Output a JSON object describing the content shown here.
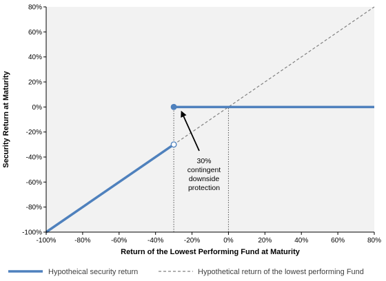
{
  "chart_data": {
    "type": "line",
    "xlabel": "Return of the Lowest Performing Fund at Maturity",
    "ylabel": "Security Return at Maturity",
    "xlim": [
      -100,
      80
    ],
    "ylim": [
      -100,
      80
    ],
    "x_ticks": [
      "-100%",
      "-80%",
      "-60%",
      "-40%",
      "-20%",
      "0%",
      "20%",
      "40%",
      "60%",
      "80%"
    ],
    "y_ticks": [
      "80%",
      "60%",
      "40%",
      "20%",
      "0%",
      "-20%",
      "-40%",
      "-60%",
      "-80%",
      "-100%"
    ],
    "grid": false,
    "plot_background": "#f2f2f2",
    "legend_position": "bottom",
    "series": [
      {
        "name": "Hypotheical security return",
        "color": "#4f81bd",
        "style": "solid",
        "segments": [
          [
            {
              "x": -100,
              "y": -100
            },
            {
              "x": -30,
              "y": -30
            }
          ],
          [
            {
              "x": -30,
              "y": 0
            },
            {
              "x": 80,
              "y": 0
            }
          ]
        ],
        "markers": [
          {
            "x": -30,
            "y": -30,
            "fill": "open"
          },
          {
            "x": -30,
            "y": 0,
            "fill": "filled"
          }
        ]
      },
      {
        "name": "Hypothetical return of the lowest performing Fund",
        "color": "#808080",
        "style": "dashed",
        "points": [
          {
            "x": -100,
            "y": -100
          },
          {
            "x": 80,
            "y": 80
          }
        ]
      }
    ],
    "reference_lines": [
      {
        "x": -30,
        "y_from": -100,
        "y_to": 0
      },
      {
        "x": 0,
        "y_from": -100,
        "y_to": 0
      }
    ],
    "annotation": {
      "lines": [
        "30%",
        "contingent",
        "downside",
        "protection"
      ],
      "arrow_to": {
        "x": -26,
        "y": -3
      }
    }
  }
}
